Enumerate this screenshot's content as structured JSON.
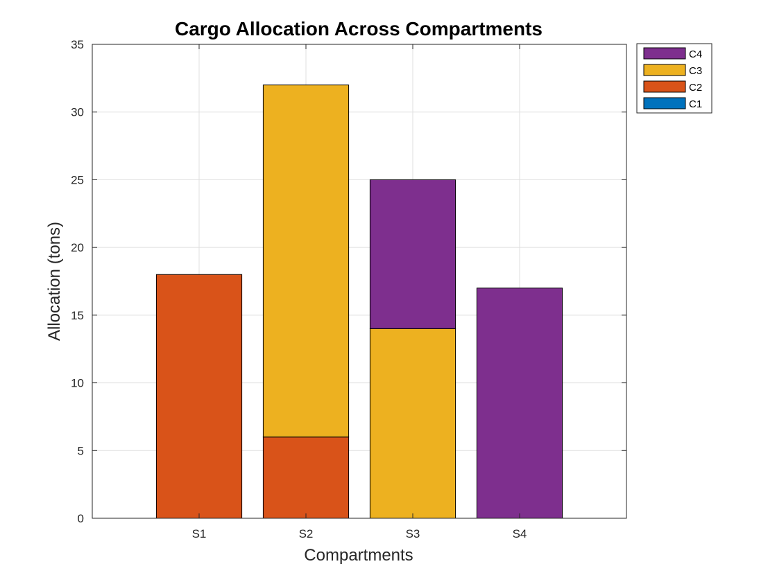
{
  "chart_data": {
    "type": "bar",
    "stacked": true,
    "title": "Cargo Allocation Across Compartments",
    "xlabel": "Compartments",
    "ylabel": "Allocation (tons)",
    "categories": [
      "S1",
      "S2",
      "S3",
      "S4"
    ],
    "ylim": [
      0,
      35
    ],
    "yticks": [
      0,
      5,
      10,
      15,
      20,
      25,
      30,
      35
    ],
    "grid": true,
    "legend_position": "outside-top-right",
    "series": [
      {
        "name": "C1",
        "color": "#0072BD",
        "values": [
          0,
          0,
          0,
          0
        ]
      },
      {
        "name": "C2",
        "color": "#D95319",
        "values": [
          18,
          6,
          0,
          0
        ]
      },
      {
        "name": "C3",
        "color": "#EDB120",
        "values": [
          0,
          26,
          14,
          0
        ]
      },
      {
        "name": "C4",
        "color": "#7E2F8E",
        "values": [
          0,
          0,
          11,
          17
        ]
      }
    ]
  }
}
